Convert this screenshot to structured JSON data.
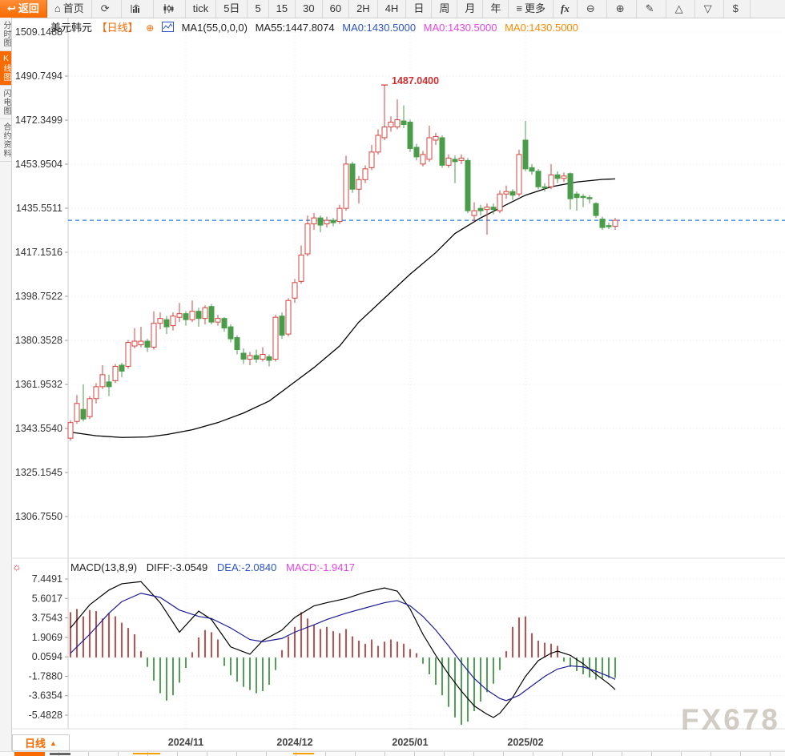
{
  "toolbar": {
    "items": [
      {
        "name": "back-button",
        "icon": "back-arrow-icon",
        "glyph": "↩",
        "label": "返回",
        "primary": true
      },
      {
        "name": "home-button",
        "icon": "home-icon",
        "glyph": "⌂",
        "label": "首页"
      },
      {
        "name": "refresh-button",
        "icon": "refresh-icon",
        "glyph": "⟳",
        "label": ""
      },
      {
        "name": "bar-chart-button",
        "icon": "bar-chart-icon",
        "glyph": "svg-bar",
        "label": ""
      },
      {
        "name": "candle-chart-button",
        "icon": "candle-chart-icon",
        "glyph": "svg-candle",
        "label": ""
      },
      {
        "name": "tick-button",
        "label": "tick"
      },
      {
        "name": "period-5d-button",
        "label": "5日"
      },
      {
        "name": "period-5-button",
        "label": "5"
      },
      {
        "name": "period-15-button",
        "label": "15"
      },
      {
        "name": "period-30-button",
        "label": "30"
      },
      {
        "name": "period-60-button",
        "label": "60"
      },
      {
        "name": "period-2h-button",
        "label": "2H"
      },
      {
        "name": "period-4h-button",
        "label": "4H"
      },
      {
        "name": "period-day-button",
        "label": "日"
      },
      {
        "name": "period-week-button",
        "label": "周"
      },
      {
        "name": "period-month-button",
        "label": "月"
      },
      {
        "name": "period-year-button",
        "label": "年"
      },
      {
        "name": "more-button",
        "icon": "menu-icon",
        "glyph": "≡",
        "label": "更多"
      },
      {
        "name": "indicator-fx-button",
        "label": "fx",
        "fx": true
      },
      {
        "name": "zoom-out-button",
        "icon": "zoom-out-icon",
        "glyph": "⊖",
        "label": ""
      },
      {
        "name": "zoom-in-button",
        "icon": "zoom-in-icon",
        "glyph": "⊕",
        "label": ""
      },
      {
        "name": "draw-button",
        "icon": "pencil-icon",
        "glyph": "✎",
        "label": ""
      },
      {
        "name": "triangle-up-button",
        "icon": "triangle-up-icon",
        "glyph": "△",
        "label": ""
      },
      {
        "name": "triangle-down-button",
        "icon": "triangle-down-icon",
        "glyph": "▽",
        "label": ""
      },
      {
        "name": "dollar-button",
        "icon": "dollar-icon",
        "glyph": "$",
        "label": ""
      }
    ]
  },
  "sidebar": {
    "tabs": [
      {
        "name": "tab-time-chart",
        "label": "分时图",
        "active": false
      },
      {
        "name": "tab-kline-chart",
        "label": "K线图",
        "active": true
      },
      {
        "name": "tab-lightning-chart",
        "label": "闪电图",
        "active": false
      },
      {
        "name": "tab-contract-info",
        "label": "合约资料",
        "active": false
      }
    ]
  },
  "chart_header": {
    "symbol": "美元韩元",
    "period": "【日线】",
    "expand_icon": "⊕",
    "ma1": "MA1(55,0,0,0)",
    "ma55": "MA55:1447.8074",
    "ma_blue": "MA0:1430.5000",
    "ma_magenta": "MA0:1430.5000",
    "ma_orange": "MA0:1430.5000"
  },
  "macd_header": {
    "formula": "MACD(13,8,9)",
    "diff": "DIFF:-3.0549",
    "dea": "DEA:-2.0840",
    "macd": "MACD:-1.9417"
  },
  "bottom_bar": {
    "period_label": "日线",
    "arrow": "▲"
  },
  "watermark": "FX678",
  "chart_data": {
    "type": "candlestick",
    "title": "美元韩元 日线 (USD/KRW daily)",
    "price_axis_labels": [
      "1509.1488",
      "1490.7494",
      "1472.3499",
      "1453.9504",
      "1435.5511",
      "1417.1516",
      "1398.7522",
      "1380.3528",
      "1361.9532",
      "1343.5540",
      "1325.1545",
      "1306.7550"
    ],
    "macd_axis_labels": [
      "7.4491",
      "5.6017",
      "3.7543",
      "1.9069",
      "0.0594",
      "-1.7880",
      "-3.6354",
      "-5.4828"
    ],
    "price_range": {
      "top": 1509.1488,
      "bottom": 1306.755
    },
    "macd_range": {
      "top": 7.4491,
      "bottom": -5.4828
    },
    "x_tick_labels": [
      {
        "label": "2024/11",
        "index": 18
      },
      {
        "label": "2024/12",
        "index": 35
      },
      {
        "label": "2025/01",
        "index": 53
      },
      {
        "label": "2025/02",
        "index": 71
      }
    ],
    "last_price_line": 1430.5,
    "peak_annotation": {
      "text": "1487.0400",
      "value": 1487.04,
      "index": 49
    },
    "legend": [
      "MA55 (black)",
      "DIFF (black)",
      "DEA (blue)",
      "MACD histogram (red/green)"
    ],
    "candles": [
      [
        1339.5,
        1347,
        1338.5,
        1346
      ],
      [
        1346.5,
        1357.5,
        1345.5,
        1354
      ],
      [
        1351.5,
        1362,
        1346.5,
        1347.5
      ],
      [
        1348.5,
        1357,
        1347.5,
        1356
      ],
      [
        1356,
        1362.5,
        1354,
        1361
      ],
      [
        1361,
        1370,
        1360,
        1366
      ],
      [
        1363,
        1366,
        1357,
        1361
      ],
      [
        1363.5,
        1370.5,
        1362.5,
        1369.5
      ],
      [
        1370,
        1371,
        1365,
        1367.5
      ],
      [
        1369.5,
        1380.5,
        1368.5,
        1379.5
      ],
      [
        1378,
        1385.5,
        1377,
        1380
      ],
      [
        1378.5,
        1386,
        1377.5,
        1380
      ],
      [
        1380,
        1381,
        1375.5,
        1377.5
      ],
      [
        1377.5,
        1392.5,
        1376.5,
        1387.5
      ],
      [
        1387.5,
        1392,
        1385,
        1389.5
      ],
      [
        1389,
        1390.5,
        1383,
        1386
      ],
      [
        1386.5,
        1392,
        1384.5,
        1390.5
      ],
      [
        1390,
        1396,
        1388,
        1391.5
      ],
      [
        1391.5,
        1392.5,
        1386.5,
        1389
      ],
      [
        1389,
        1397,
        1388,
        1392.5
      ],
      [
        1392.5,
        1394,
        1386,
        1389.5
      ],
      [
        1389.5,
        1395,
        1387,
        1394
      ],
      [
        1394.5,
        1395.5,
        1387,
        1388
      ],
      [
        1388,
        1391,
        1386.5,
        1389.5
      ],
      [
        1389.5,
        1390,
        1384,
        1385.5
      ],
      [
        1386,
        1387,
        1379.5,
        1381
      ],
      [
        1381.5,
        1382.5,
        1374.5,
        1376.5
      ],
      [
        1375,
        1377,
        1370.5,
        1372.5
      ],
      [
        1372.5,
        1375.5,
        1370,
        1374
      ],
      [
        1374,
        1376.5,
        1371,
        1372.5
      ],
      [
        1372.5,
        1377.5,
        1371.5,
        1374.5
      ],
      [
        1373.5,
        1374.5,
        1369.5,
        1372
      ],
      [
        1372.5,
        1391,
        1371.5,
        1390
      ],
      [
        1390.5,
        1392,
        1381,
        1382.5
      ],
      [
        1383,
        1398,
        1382,
        1397
      ],
      [
        1398,
        1406,
        1396,
        1404.5
      ],
      [
        1405,
        1420,
        1404,
        1416
      ],
      [
        1416.5,
        1432.5,
        1415.5,
        1429
      ],
      [
        1429,
        1433.5,
        1426.5,
        1431.5
      ],
      [
        1431.5,
        1432.5,
        1425.5,
        1428.5
      ],
      [
        1429,
        1432,
        1427.5,
        1430.5
      ],
      [
        1430.5,
        1431.5,
        1428,
        1429.5
      ],
      [
        1430,
        1437,
        1429,
        1435.5
      ],
      [
        1435.5,
        1457.5,
        1434.5,
        1454
      ],
      [
        1454,
        1455,
        1442,
        1443.5
      ],
      [
        1443.5,
        1449,
        1437.5,
        1447.5
      ],
      [
        1447.5,
        1453.5,
        1446,
        1452
      ],
      [
        1452.5,
        1462,
        1451.5,
        1459
      ],
      [
        1459,
        1468.5,
        1458,
        1466
      ],
      [
        1465,
        1487.04,
        1464,
        1469.5
      ],
      [
        1469.5,
        1474,
        1467.5,
        1471.5
      ],
      [
        1469.5,
        1481,
        1468.5,
        1472.5
      ],
      [
        1472,
        1478.5,
        1469,
        1470.5
      ],
      [
        1471.5,
        1472.5,
        1459,
        1460.5
      ],
      [
        1461,
        1462.5,
        1455.5,
        1457
      ],
      [
        1454,
        1459.5,
        1453,
        1458
      ],
      [
        1456,
        1470,
        1455,
        1465
      ],
      [
        1464,
        1467,
        1462,
        1465.5
      ],
      [
        1465,
        1466,
        1452.5,
        1453.5
      ],
      [
        1453.5,
        1458,
        1452.5,
        1456.5
      ],
      [
        1456,
        1457.5,
        1446,
        1455
      ],
      [
        1455.5,
        1458,
        1454,
        1456.5
      ],
      [
        1455.5,
        1456.5,
        1433.5,
        1434.5
      ],
      [
        1432.5,
        1438,
        1430,
        1434.5
      ],
      [
        1435.5,
        1437,
        1432.5,
        1434.5
      ],
      [
        1435,
        1437.5,
        1424.5,
        1436
      ],
      [
        1436,
        1437.5,
        1433,
        1435
      ],
      [
        1434.5,
        1443,
        1433.5,
        1441.5
      ],
      [
        1441.5,
        1445,
        1439.5,
        1442.5
      ],
      [
        1442.5,
        1443.5,
        1439,
        1441
      ],
      [
        1441.5,
        1460,
        1440.5,
        1458
      ],
      [
        1464,
        1472,
        1451,
        1452
      ],
      [
        1452.5,
        1454,
        1449.5,
        1451
      ],
      [
        1451,
        1452,
        1443.5,
        1444.5
      ],
      [
        1444.5,
        1446,
        1442.5,
        1444
      ],
      [
        1444.5,
        1454,
        1443.5,
        1449.5
      ],
      [
        1449.5,
        1451,
        1446,
        1448
      ],
      [
        1448,
        1450.5,
        1446.5,
        1449
      ],
      [
        1450,
        1450.5,
        1435,
        1439.5
      ],
      [
        1441.5,
        1442.5,
        1434.5,
        1440
      ],
      [
        1440.5,
        1441.5,
        1436,
        1440
      ],
      [
        1440,
        1441,
        1437.5,
        1439.5
      ],
      [
        1437.5,
        1438,
        1431.5,
        1432.5
      ],
      [
        1431,
        1432,
        1426.5,
        1427.5
      ],
      [
        1428.3,
        1429.5,
        1426.8,
        1427.8
      ],
      [
        1428,
        1431.5,
        1426.5,
        1430.5
      ]
    ],
    "ma55": [
      [
        0,
        1342
      ],
      [
        4,
        1340.5
      ],
      [
        8,
        1339.8
      ],
      [
        12,
        1340
      ],
      [
        15,
        1341
      ],
      [
        19,
        1343
      ],
      [
        23,
        1346
      ],
      [
        27,
        1350
      ],
      [
        31,
        1355
      ],
      [
        34,
        1361
      ],
      [
        38,
        1369
      ],
      [
        42,
        1378
      ],
      [
        45,
        1388
      ],
      [
        49,
        1398
      ],
      [
        53,
        1408
      ],
      [
        57,
        1417
      ],
      [
        60,
        1425
      ],
      [
        64,
        1431.5
      ],
      [
        68,
        1437
      ],
      [
        71,
        1441
      ],
      [
        75,
        1444.5
      ],
      [
        79,
        1446.5
      ],
      [
        83,
        1447.6
      ],
      [
        85,
        1447.8
      ]
    ],
    "macd": {
      "hist": [
        4.3,
        4.6,
        3.9,
        4.5,
        4.4,
        3.7,
        4.2,
        3.9,
        3.3,
        2.8,
        2.2,
        0.6,
        -0.9,
        -2.2,
        -3.4,
        -4.1,
        -3.6,
        -2.4,
        -1.0,
        0.5,
        1.9,
        2.6,
        2.4,
        1.7,
        -0.8,
        -1.7,
        -2.3,
        -2.8,
        -3.1,
        -3.4,
        -3.2,
        -2.6,
        -1.2,
        0.7,
        2.0,
        2.9,
        4.3,
        3.7,
        3.1,
        2.7,
        2.9,
        2.5,
        2.3,
        2.7,
        2.0,
        1.6,
        1.3,
        1.7,
        1.1,
        1.5,
        1.7,
        1.5,
        1.3,
        0.8,
        0.4,
        -0.6,
        -1.6,
        -2.6,
        -3.6,
        -4.7,
        -5.7,
        -6.4,
        -6.1,
        -5.1,
        -4.2,
        -3.3,
        -2.5,
        -1.2,
        0.6,
        2.9,
        3.8,
        3.9,
        2.3,
        1.6,
        1.4,
        1.3,
        1.1,
        -0.4,
        -0.9,
        -1.3,
        -1.6,
        -1.9,
        -2.1,
        -2.0,
        -1.95,
        -1.9417
      ],
      "diff": [
        [
          0,
          2.8
        ],
        [
          3,
          5.0
        ],
        [
          6,
          6.4
        ],
        [
          8,
          7.0
        ],
        [
          11,
          7.2
        ],
        [
          14,
          5.2
        ],
        [
          17,
          2.4
        ],
        [
          20,
          4.4
        ],
        [
          22,
          3.6
        ],
        [
          25,
          1.0
        ],
        [
          28,
          0.3
        ],
        [
          30,
          1.6
        ],
        [
          33,
          2.6
        ],
        [
          35,
          3.8
        ],
        [
          38,
          4.9
        ],
        [
          40,
          5.2
        ],
        [
          43,
          5.6
        ],
        [
          46,
          6.2
        ],
        [
          49,
          6.6
        ],
        [
          51,
          6.3
        ],
        [
          53,
          4.6
        ],
        [
          55,
          2.2
        ],
        [
          57,
          0.2
        ],
        [
          59,
          -1.6
        ],
        [
          61,
          -3.2
        ],
        [
          63,
          -4.6
        ],
        [
          65,
          -5.4
        ],
        [
          66,
          -5.7
        ],
        [
          67,
          -5.3
        ],
        [
          69,
          -3.8
        ],
        [
          71,
          -1.8
        ],
        [
          73,
          -0.3
        ],
        [
          75,
          0.4
        ],
        [
          76,
          0.6
        ],
        [
          78,
          0.2
        ],
        [
          80,
          -0.6
        ],
        [
          82,
          -1.6
        ],
        [
          84,
          -2.5
        ],
        [
          85,
          -3.05
        ]
      ],
      "dea": [
        [
          0,
          0.4
        ],
        [
          3,
          2.2
        ],
        [
          6,
          4.2
        ],
        [
          8,
          5.3
        ],
        [
          11,
          6.1
        ],
        [
          14,
          5.7
        ],
        [
          17,
          4.5
        ],
        [
          20,
          3.9
        ],
        [
          22,
          3.7
        ],
        [
          25,
          2.8
        ],
        [
          28,
          1.7
        ],
        [
          30,
          1.5
        ],
        [
          33,
          1.8
        ],
        [
          35,
          2.4
        ],
        [
          38,
          3.1
        ],
        [
          40,
          3.6
        ],
        [
          43,
          4.2
        ],
        [
          46,
          4.7
        ],
        [
          49,
          5.2
        ],
        [
          51,
          5.4
        ],
        [
          53,
          4.9
        ],
        [
          55,
          3.9
        ],
        [
          57,
          2.6
        ],
        [
          59,
          1.1
        ],
        [
          61,
          -0.5
        ],
        [
          63,
          -2.0
        ],
        [
          65,
          -3.1
        ],
        [
          67,
          -3.9
        ],
        [
          68,
          -4.1
        ],
        [
          70,
          -3.6
        ],
        [
          72,
          -2.7
        ],
        [
          74,
          -1.8
        ],
        [
          76,
          -1.1
        ],
        [
          78,
          -0.8
        ],
        [
          80,
          -0.9
        ],
        [
          82,
          -1.3
        ],
        [
          84,
          -1.8
        ],
        [
          85,
          -2.08
        ]
      ]
    },
    "colors": {
      "up": "#d6433f",
      "down": "#4a9c4a",
      "ma55": "#000000",
      "diff": "#000000",
      "dea": "#1c1c96",
      "hist_up": "#c4504e",
      "hist_down": "#54a054",
      "dashed_line": "#1f7de0",
      "grid": "#e9e9e9",
      "axis_text": "#333333",
      "accent_orange": "#f96a00"
    }
  }
}
